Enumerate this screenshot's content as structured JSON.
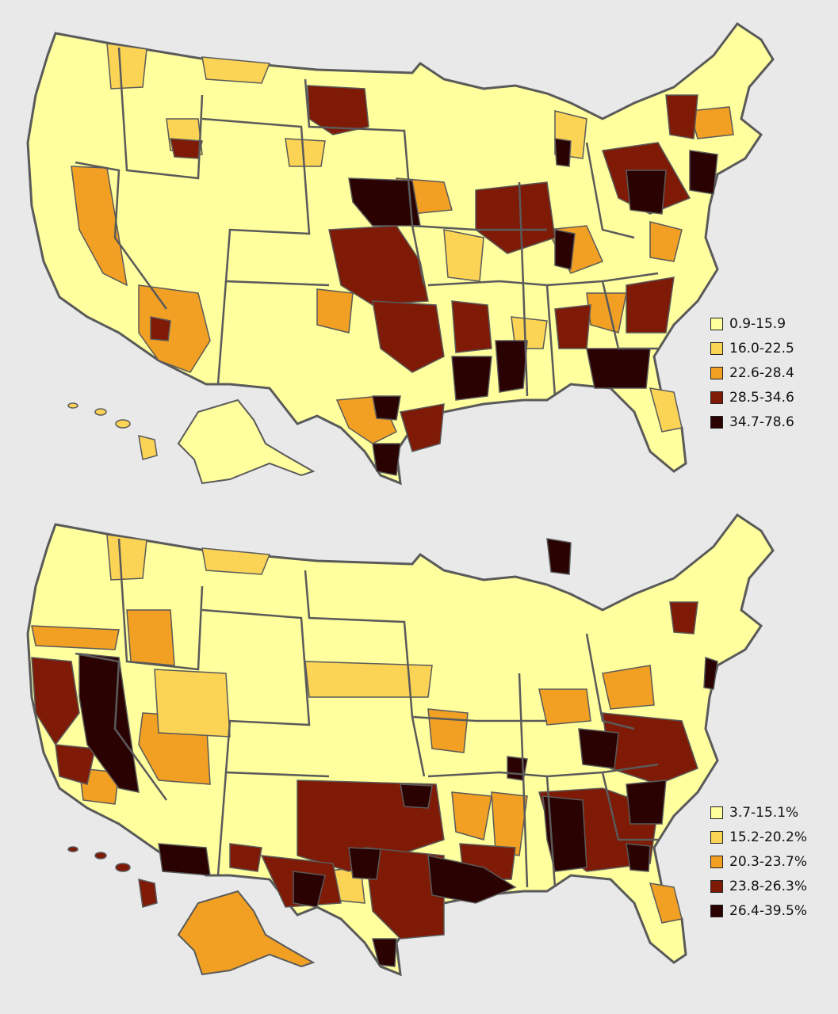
{
  "palette": {
    "c1": "#ffff9e",
    "c2": "#fbd455",
    "c3": "#f2a023",
    "c4": "#7e1a05",
    "c5": "#2a0202",
    "border": "#5a5a5a",
    "background": "#e9e9e9"
  },
  "maps": [
    {
      "name": "top-map",
      "legend": [
        {
          "label": "0.9-15.9",
          "color": "#ffff9e"
        },
        {
          "label": "16.0-22.5",
          "color": "#fbd455"
        },
        {
          "label": "22.6-28.4",
          "color": "#f2a023"
        },
        {
          "label": "28.5-34.6",
          "color": "#7e1a05"
        },
        {
          "label": "34.7-78.6",
          "color": "#2a0202"
        }
      ]
    },
    {
      "name": "bottom-map",
      "legend": [
        {
          "label": "3.7-15.1%",
          "color": "#ffff9e"
        },
        {
          "label": "15.2-20.2%",
          "color": "#fbd455"
        },
        {
          "label": "20.3-23.7%",
          "color": "#f2a023"
        },
        {
          "label": "23.8-26.3%",
          "color": "#7e1a05"
        },
        {
          "label": "26.4-39.5%",
          "color": "#2a0202"
        }
      ]
    }
  ]
}
